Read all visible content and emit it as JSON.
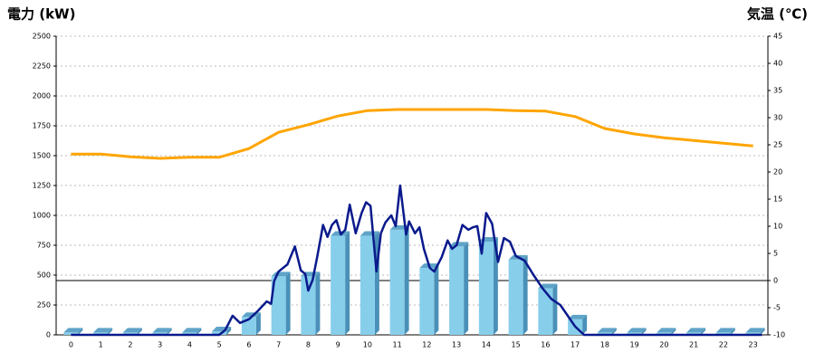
{
  "chart_data": {
    "type": "combo",
    "title_left": "電力 (kW)",
    "title_right": "気温 (℃)",
    "title_left_color": "#1f6fb5",
    "title_right_color": "#f08a1c",
    "categories": [
      "0",
      "1",
      "2",
      "3",
      "4",
      "5",
      "6",
      "7",
      "8",
      "9",
      "10",
      "11",
      "12",
      "13",
      "14",
      "15",
      "16",
      "17",
      "18",
      "19",
      "20",
      "21",
      "22",
      "23"
    ],
    "ylim": [
      0,
      2500
    ],
    "yticks": [
      0,
      250,
      500,
      750,
      1000,
      1250,
      1500,
      1750,
      2000,
      2250,
      2500
    ],
    "y2lim": [
      -10,
      45
    ],
    "y2ticks": [
      -10,
      -5,
      0,
      5,
      10,
      15,
      20,
      25,
      30,
      35,
      40,
      45
    ],
    "grid": true,
    "series": [
      {
        "type": "bar",
        "color": "#87ceeb",
        "values": [
          20,
          20,
          20,
          20,
          20,
          30,
          150,
          490,
          490,
          830,
          830,
          880,
          560,
          740,
          780,
          630,
          390,
          130,
          20,
          20,
          20,
          20,
          20,
          20
        ]
      },
      {
        "type": "line",
        "color": "#0a1a8c",
        "x": [
          0,
          5,
          5.2,
          5.45,
          5.7,
          6.0,
          6.3,
          6.6,
          6.75,
          6.85,
          7.0,
          7.3,
          7.55,
          7.75,
          7.9,
          8.0,
          8.15,
          8.3,
          8.5,
          8.65,
          8.8,
          8.95,
          9.1,
          9.25,
          9.4,
          9.6,
          9.8,
          9.95,
          10.1,
          10.3,
          10.45,
          10.6,
          10.8,
          10.95,
          11.1,
          11.3,
          11.4,
          11.6,
          11.75,
          11.9,
          12.1,
          12.25,
          12.5,
          12.7,
          12.85,
          13.0,
          13.2,
          13.4,
          13.55,
          13.7,
          13.85,
          14.0,
          14.2,
          14.4,
          14.6,
          14.8,
          15.0,
          15.3,
          15.6,
          15.9,
          16.2,
          16.5,
          16.75,
          17.0,
          17.3,
          23.3
        ],
        "values": [
          0,
          0,
          40,
          160,
          100,
          130,
          200,
          280,
          260,
          450,
          530,
          590,
          740,
          540,
          510,
          370,
          460,
          650,
          920,
          820,
          920,
          960,
          840,
          880,
          1090,
          850,
          1020,
          1110,
          1080,
          530,
          850,
          940,
          1000,
          910,
          1250,
          840,
          950,
          850,
          900,
          720,
          560,
          530,
          650,
          790,
          720,
          750,
          920,
          880,
          900,
          910,
          680,
          1020,
          930,
          610,
          810,
          780,
          660,
          620,
          500,
          390,
          300,
          250,
          160,
          70,
          0,
          0
        ]
      },
      {
        "type": "line",
        "axis": "y2",
        "color": "#ffa500",
        "values": [
          23.3,
          23.3,
          22.8,
          22.5,
          22.7,
          22.7,
          24.3,
          27.3,
          28.7,
          30.3,
          31.3,
          31.5,
          31.5,
          31.5,
          31.5,
          31.3,
          31.2,
          30.2,
          28,
          27,
          26.3,
          25.8,
          25.3,
          24.8
        ]
      }
    ]
  }
}
